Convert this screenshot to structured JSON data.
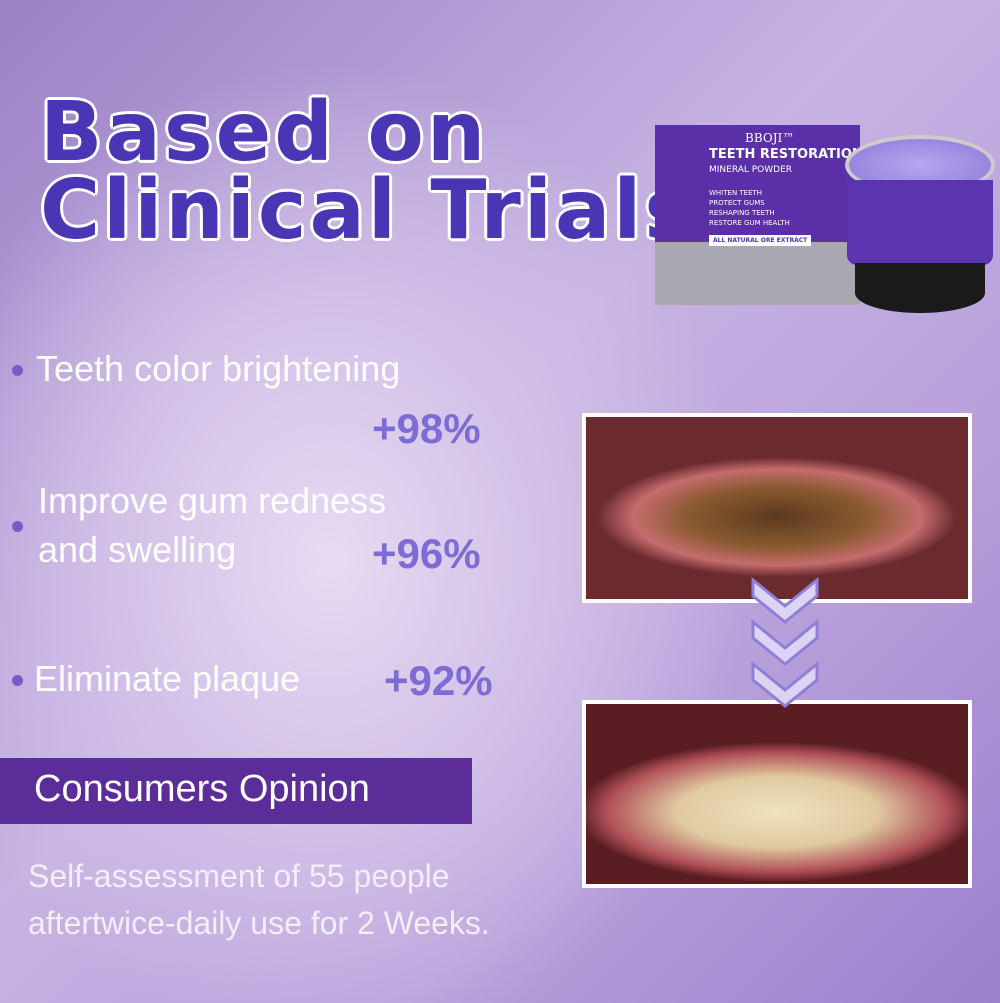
{
  "headline": {
    "line1": "Based on",
    "line2": "Clinical Trials"
  },
  "product": {
    "brand": "BBOJI™",
    "name": "TEETH RESTORATION",
    "subtitle": "MINERAL POWDER",
    "features": [
      "WHITEN TEETH",
      "PROTECT GUMS",
      "RESHAPING TEETH",
      "RESTORE GUM HEALTH"
    ],
    "tag": "ALL NATURAL ORE EXTRACT"
  },
  "results": [
    {
      "label": "Teeth color brightening",
      "value": "+98%"
    },
    {
      "label_line1": "Improve gum redness",
      "label_line2": "and swelling",
      "value": "+96%"
    },
    {
      "label": "Eliminate plaque",
      "value": "+92%"
    }
  ],
  "banner": "Consumers Opinion",
  "note": {
    "line1": "Self-assessment of 55 people",
    "line2": "aftertwice-daily use for 2 Weeks."
  },
  "colors": {
    "title": "#4a35b5",
    "percent": "#7d6bd6",
    "banner": "#5a2d98"
  }
}
